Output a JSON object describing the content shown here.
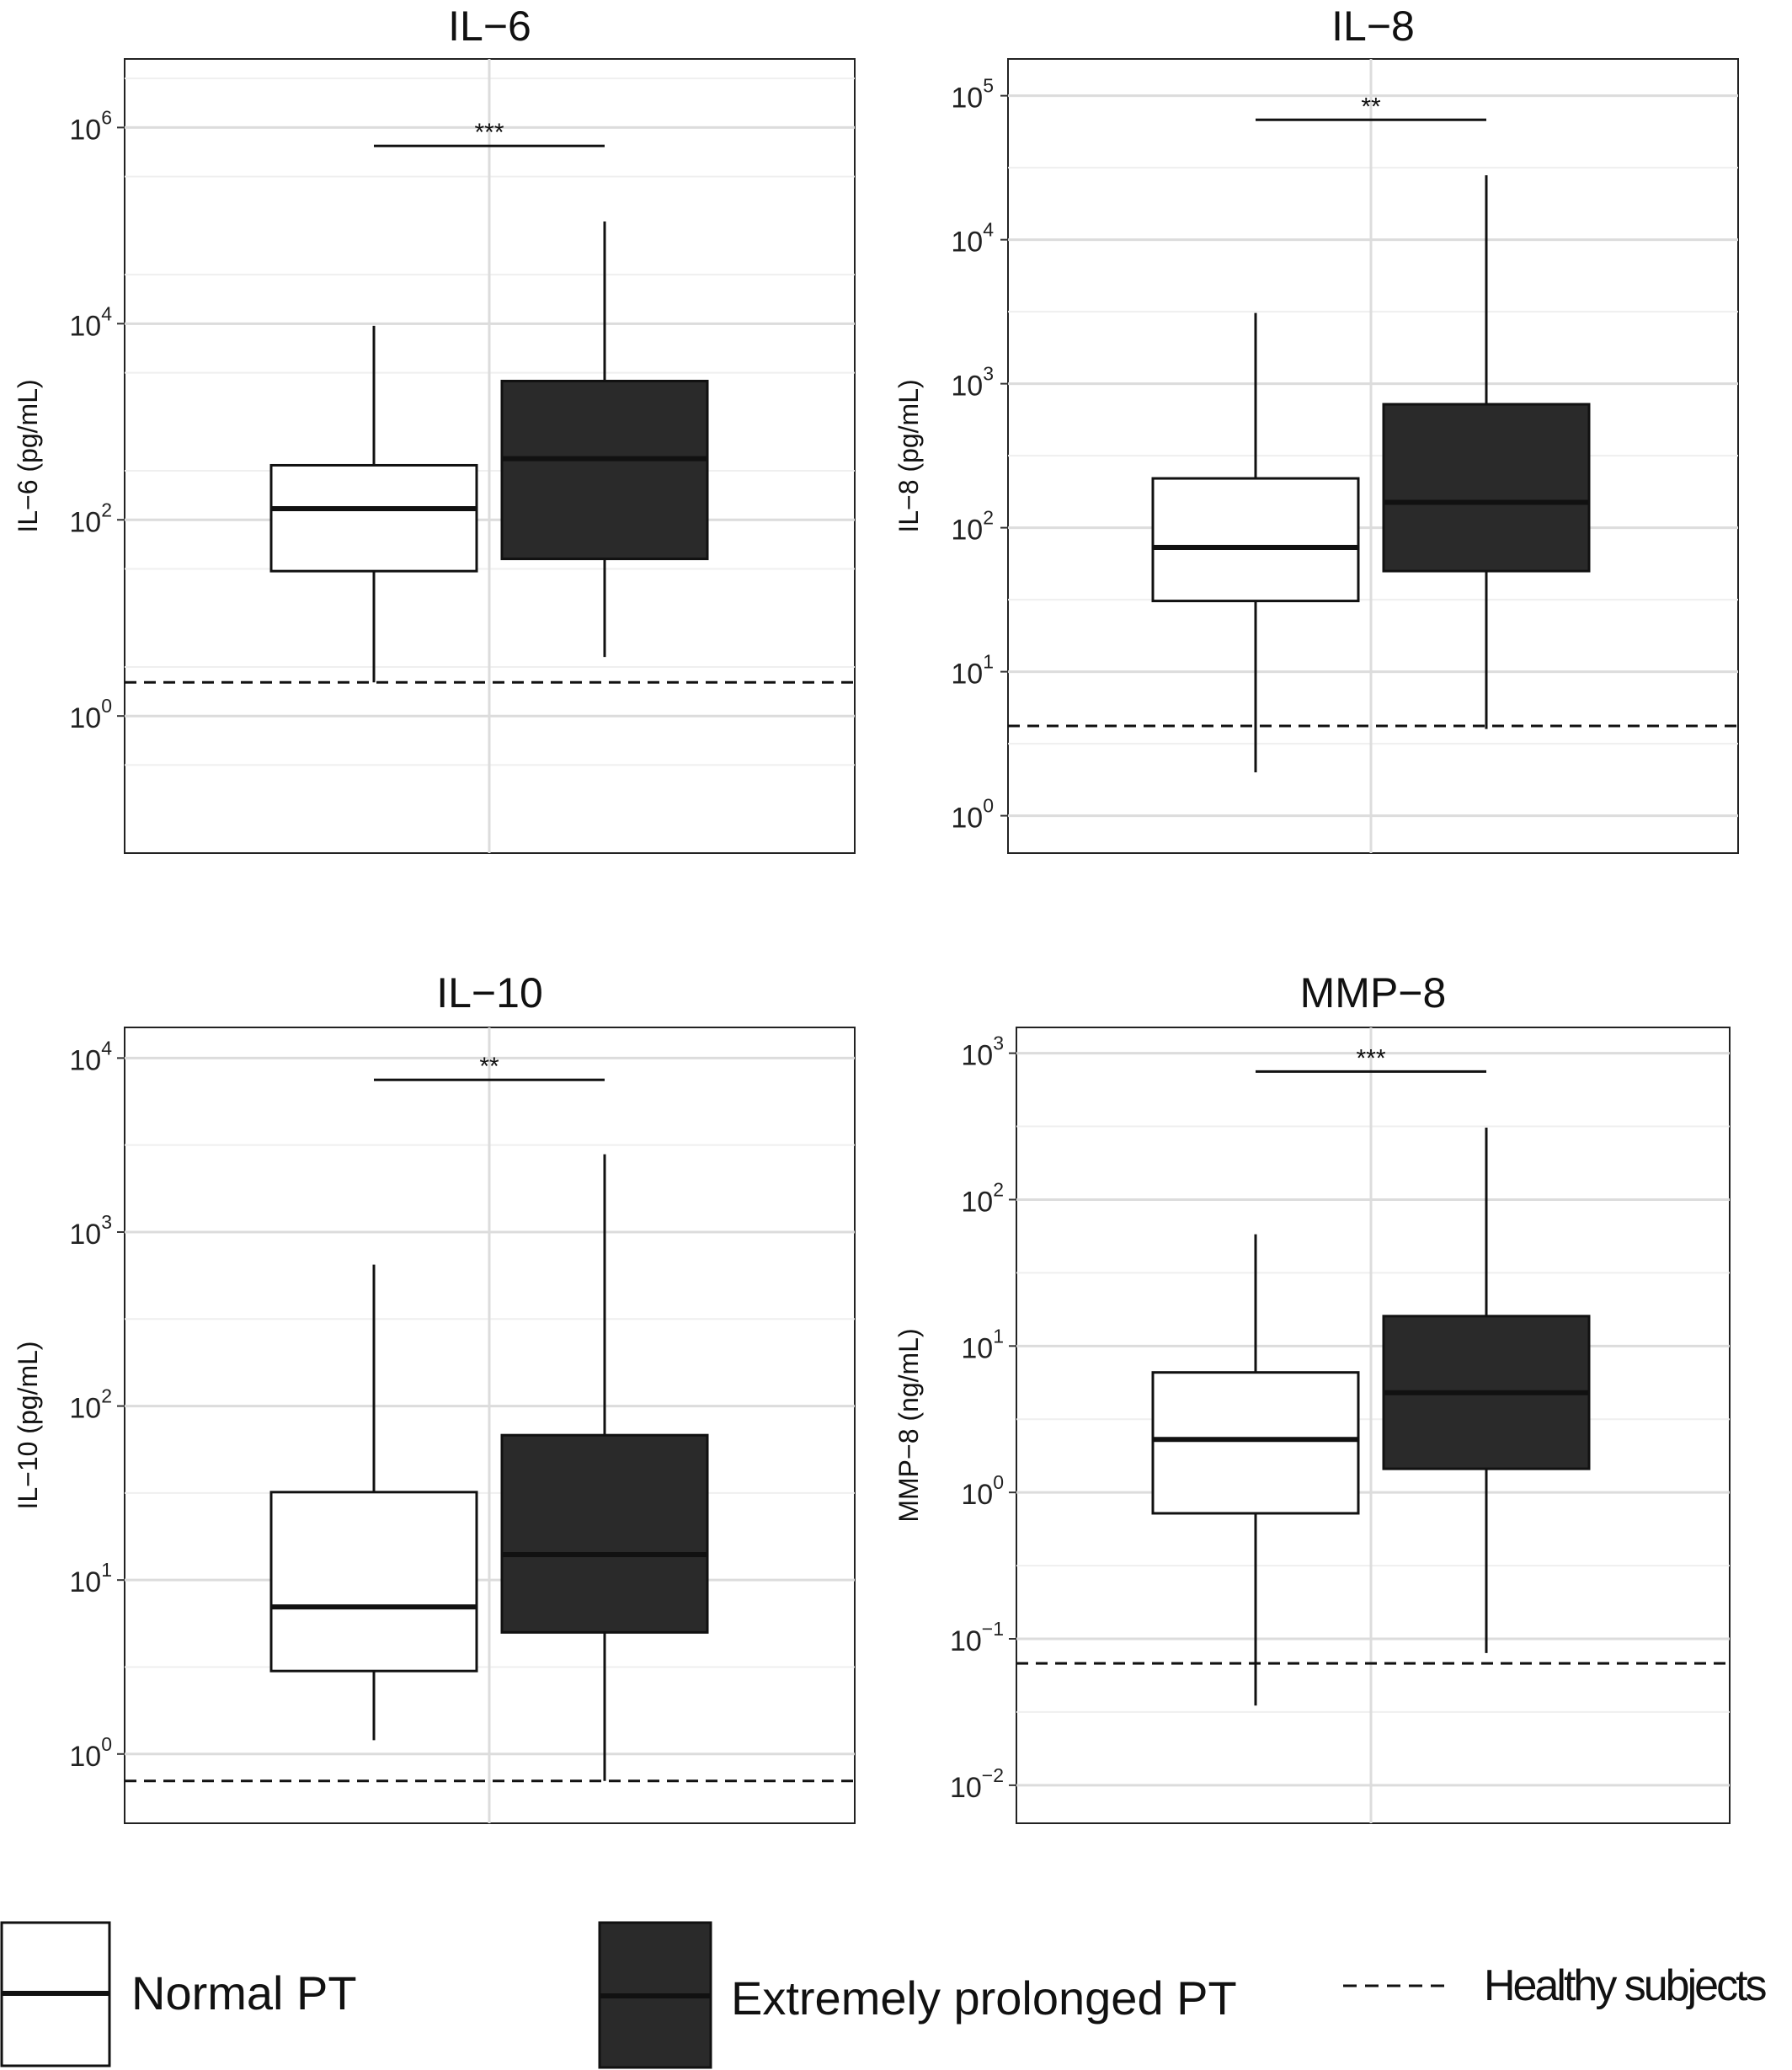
{
  "chart_data": [
    {
      "type": "box",
      "title": "IL−6",
      "ylabel": "IL−6 (pg/mL)",
      "yscale": "log10",
      "ylim": [
        0.04,
        5000000
      ],
      "yticks": [
        {
          "value": 1,
          "base": "10",
          "exp": "0"
        },
        {
          "value": 100,
          "base": "10",
          "exp": "2"
        },
        {
          "value": 10000,
          "base": "10",
          "exp": "4"
        },
        {
          "value": 1000000,
          "base": "10",
          "exp": "6"
        }
      ],
      "series": [
        {
          "name": "Normal PT",
          "fill": "#ffffff",
          "whisker_low": 2.2,
          "q1": 30,
          "median": 130,
          "q3": 360,
          "whisker_high": 9500
        },
        {
          "name": "Extremely prolonged PT",
          "fill": "#2a2a2a",
          "whisker_low": 4,
          "q1": 40,
          "median": 420,
          "q3": 2600,
          "whisker_high": 110000
        }
      ],
      "reference_line": {
        "value": 2.2,
        "style": "dashed"
      },
      "significance": {
        "label": "***",
        "y": 650000
      }
    },
    {
      "type": "box",
      "title": "IL−8",
      "ylabel": "IL−8 (pg/mL)",
      "yscale": "log10",
      "ylim": [
        0.55,
        180000
      ],
      "yticks": [
        {
          "value": 1,
          "base": "10",
          "exp": "0"
        },
        {
          "value": 10,
          "base": "10",
          "exp": "1"
        },
        {
          "value": 100,
          "base": "10",
          "exp": "2"
        },
        {
          "value": 1000,
          "base": "10",
          "exp": "3"
        },
        {
          "value": 10000,
          "base": "10",
          "exp": "4"
        },
        {
          "value": 100000,
          "base": "10",
          "exp": "5"
        }
      ],
      "series": [
        {
          "name": "Normal PT",
          "fill": "#ffffff",
          "whisker_low": 2,
          "q1": 31,
          "median": 73,
          "q3": 220,
          "whisker_high": 3100
        },
        {
          "name": "Extremely prolonged PT",
          "fill": "#2a2a2a",
          "whisker_low": 4,
          "q1": 50,
          "median": 150,
          "q3": 720,
          "whisker_high": 28000
        }
      ],
      "reference_line": {
        "value": 4.2,
        "style": "dashed"
      },
      "significance": {
        "label": "**",
        "y": 68000
      }
    },
    {
      "type": "box",
      "title": "IL−10",
      "ylabel": "IL−10 (pg/mL)",
      "yscale": "log10",
      "ylim": [
        0.4,
        15000
      ],
      "yticks": [
        {
          "value": 1,
          "base": "10",
          "exp": "0"
        },
        {
          "value": 10,
          "base": "10",
          "exp": "1"
        },
        {
          "value": 100,
          "base": "10",
          "exp": "2"
        },
        {
          "value": 1000,
          "base": "10",
          "exp": "3"
        },
        {
          "value": 10000,
          "base": "10",
          "exp": "4"
        }
      ],
      "series": [
        {
          "name": "Normal PT",
          "fill": "#ffffff",
          "whisker_low": 1.2,
          "q1": 3,
          "median": 7,
          "q3": 32,
          "whisker_high": 650
        },
        {
          "name": "Extremely prolonged PT",
          "fill": "#2a2a2a",
          "whisker_low": 0.7,
          "q1": 5,
          "median": 14,
          "q3": 68,
          "whisker_high": 2800
        }
      ],
      "reference_line": {
        "value": 0.7,
        "style": "dashed"
      },
      "significance": {
        "label": "**",
        "y": 7500
      }
    },
    {
      "type": "box",
      "title": "MMP−8",
      "ylabel": "MMP−8 (ng/mL)",
      "yscale": "log10",
      "ylim": [
        0.0055,
        1500
      ],
      "yticks": [
        {
          "value": 0.01,
          "base": "10",
          "exp": "−2"
        },
        {
          "value": 0.1,
          "base": "10",
          "exp": "−1"
        },
        {
          "value": 1,
          "base": "10",
          "exp": "0"
        },
        {
          "value": 10,
          "base": "10",
          "exp": "1"
        },
        {
          "value": 100,
          "base": "10",
          "exp": "2"
        },
        {
          "value": 1000,
          "base": "10",
          "exp": "3"
        }
      ],
      "series": [
        {
          "name": "Normal PT",
          "fill": "#ffffff",
          "whisker_low": 0.035,
          "q1": 0.72,
          "median": 2.3,
          "q3": 6.6,
          "whisker_high": 58
        },
        {
          "name": "Extremely prolonged PT",
          "fill": "#2a2a2a",
          "whisker_low": 0.08,
          "q1": 1.45,
          "median": 4.8,
          "q3": 16,
          "whisker_high": 310
        }
      ],
      "reference_line": {
        "value": 0.068,
        "style": "dashed"
      },
      "significance": {
        "label": "***",
        "y": 750
      }
    }
  ],
  "legend": {
    "position": "bottom",
    "items": [
      {
        "label": "Normal PT",
        "symbol": "box",
        "fill": "#ffffff"
      },
      {
        "label": "Extremely prolonged PT",
        "symbol": "box",
        "fill": "#2a2a2a"
      },
      {
        "label": "Healthy subjects",
        "symbol": "dashed-line"
      }
    ]
  }
}
